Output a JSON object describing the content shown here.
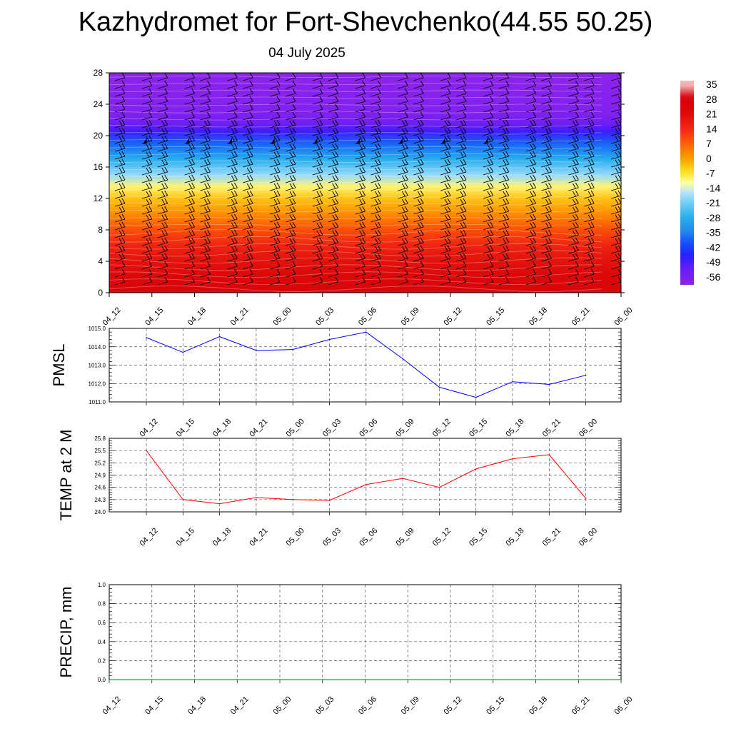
{
  "header": {
    "title": "Kazhydromet for Fort-Shevchenko(44.55 50.25)",
    "subtitle": "04 July 2025"
  },
  "chart_data": [
    {
      "type": "heatmap",
      "name": "vertical-profile",
      "x_categories": [
        "04_12",
        "04_15",
        "04_18",
        "04_21",
        "05_00",
        "05_03",
        "05_06",
        "05_09",
        "05_12",
        "05_15",
        "05_18",
        "05_21",
        "06_00"
      ],
      "y_ticks": [
        0,
        4,
        8,
        12,
        16,
        20,
        24,
        28
      ],
      "ylim": [
        0,
        28
      ],
      "colorbar_labels": [
        "35",
        "28",
        "21",
        "14",
        "7",
        "0",
        "-7",
        "-14",
        "-21",
        "-28",
        "-35",
        "-42",
        "-49",
        "-56"
      ],
      "colorbar_range": [
        -60,
        38
      ],
      "temperature_profile": [
        {
          "h": 0,
          "t": 26
        },
        {
          "h": 2,
          "t": 24
        },
        {
          "h": 4,
          "t": 20
        },
        {
          "h": 6,
          "t": 16
        },
        {
          "h": 8,
          "t": 10
        },
        {
          "h": 10,
          "t": 3
        },
        {
          "h": 12,
          "t": -3
        },
        {
          "h": 13.5,
          "t": -9
        },
        {
          "h": 15,
          "t": -18
        },
        {
          "h": 17,
          "t": -28
        },
        {
          "h": 19,
          "t": -38
        },
        {
          "h": 20.5,
          "t": -48
        },
        {
          "h": 21.5,
          "t": -54
        },
        {
          "h": 23,
          "t": -58
        },
        {
          "h": 28,
          "t": -60
        }
      ],
      "wind_barbs": "wind-barbs"
    },
    {
      "type": "line",
      "name": "pmsl",
      "ylabel": "PMSL",
      "categories": [
        "04_12",
        "04_15",
        "04_18",
        "04_21",
        "05_00",
        "05_03",
        "05_06",
        "05_09",
        "05_12",
        "05_15",
        "05_18",
        "05_21",
        "06_00"
      ],
      "y_ticks": [
        "1011.0",
        "1012.0",
        "1013.0",
        "1014.0",
        "1015.0"
      ],
      "ylim": [
        1011,
        1015
      ],
      "series": [
        {
          "values": [
            1014.5,
            1013.7,
            1014.55,
            1013.8,
            1013.85,
            1014.4,
            1014.8,
            1013.35,
            1011.8,
            1011.25,
            1012.1,
            1011.95,
            1012.45
          ],
          "color": "#0000ff"
        }
      ]
    },
    {
      "type": "line",
      "name": "temp-2m",
      "ylabel": "TEMP at 2 M",
      "categories": [
        "04_12",
        "04_15",
        "04_18",
        "04_21",
        "05_00",
        "05_03",
        "05_06",
        "05_09",
        "05_12",
        "05_15",
        "05_18",
        "05_21",
        "06_00"
      ],
      "y_ticks": [
        "24.0",
        "24.3",
        "24.6",
        "24.9",
        "25.2",
        "25.5",
        "25.8"
      ],
      "ylim": [
        24.0,
        25.8
      ],
      "series": [
        {
          "values": [
            25.5,
            24.3,
            24.2,
            24.35,
            24.3,
            24.28,
            24.67,
            24.82,
            24.6,
            25.05,
            25.3,
            25.4,
            24.33
          ],
          "color": "#ff0000"
        }
      ]
    },
    {
      "type": "line",
      "name": "precip",
      "ylabel": "PRECIP, mm",
      "categories": [
        "04_12",
        "04_15",
        "04_18",
        "04_21",
        "05_00",
        "05_03",
        "05_06",
        "05_09",
        "05_12",
        "05_15",
        "05_18",
        "05_21",
        "06_00"
      ],
      "y_ticks": [
        "0.0",
        "0.2",
        "0.4",
        "0.6",
        "0.8",
        "1.0"
      ],
      "ylim": [
        0,
        1.0
      ],
      "series": [
        {
          "values": [
            0,
            0,
            0,
            0,
            0,
            0,
            0,
            0,
            0,
            0,
            0,
            0,
            0
          ],
          "color": "#008000"
        }
      ]
    }
  ]
}
